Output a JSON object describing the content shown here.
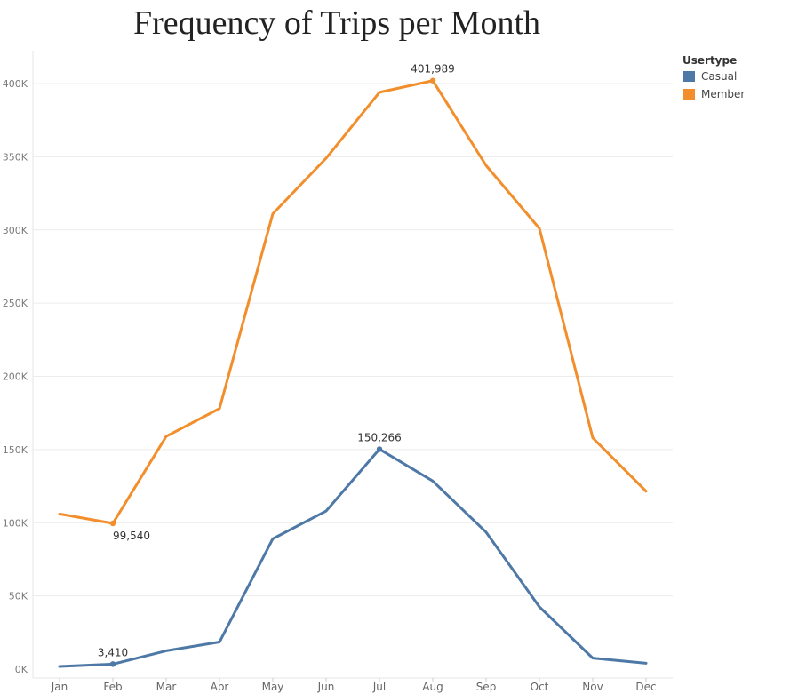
{
  "chart_data": {
    "type": "line",
    "title": "Frequency of Trips per Month",
    "xlabel": "",
    "ylabel": "",
    "categories": [
      "Jan",
      "Feb",
      "Mar",
      "Apr",
      "May",
      "Jun",
      "Jul",
      "Aug",
      "Sep",
      "Oct",
      "Nov",
      "Dec"
    ],
    "ylim": [
      0,
      420000
    ],
    "yticks": [
      0,
      50000,
      100000,
      150000,
      200000,
      250000,
      300000,
      350000,
      400000
    ],
    "ytick_labels": [
      "0K",
      "50K",
      "100K",
      "150K",
      "200K",
      "250K",
      "300K",
      "350K",
      "400K"
    ],
    "grid": "horizontal",
    "legend": {
      "title": "Usertype",
      "placement": "top-right"
    },
    "series": [
      {
        "name": "Casual",
        "color": "#4e79a7",
        "values": [
          1800,
          3410,
          12500,
          18500,
          89000,
          108000,
          150266,
          128500,
          93500,
          42500,
          7500,
          4000
        ]
      },
      {
        "name": "Member",
        "color": "#f28e2b",
        "values": [
          106000,
          99540,
          159000,
          178000,
          311000,
          349000,
          394000,
          401989,
          344000,
          301000,
          158000,
          121500
        ]
      }
    ],
    "annotations": [
      {
        "series": "Casual",
        "category": "Feb",
        "label": "3,410",
        "position": "above"
      },
      {
        "series": "Casual",
        "category": "Jul",
        "label": "150,266",
        "position": "above"
      },
      {
        "series": "Member",
        "category": "Feb",
        "label": "99,540",
        "position": "below"
      },
      {
        "series": "Member",
        "category": "Aug",
        "label": "401,989",
        "position": "above"
      }
    ]
  }
}
